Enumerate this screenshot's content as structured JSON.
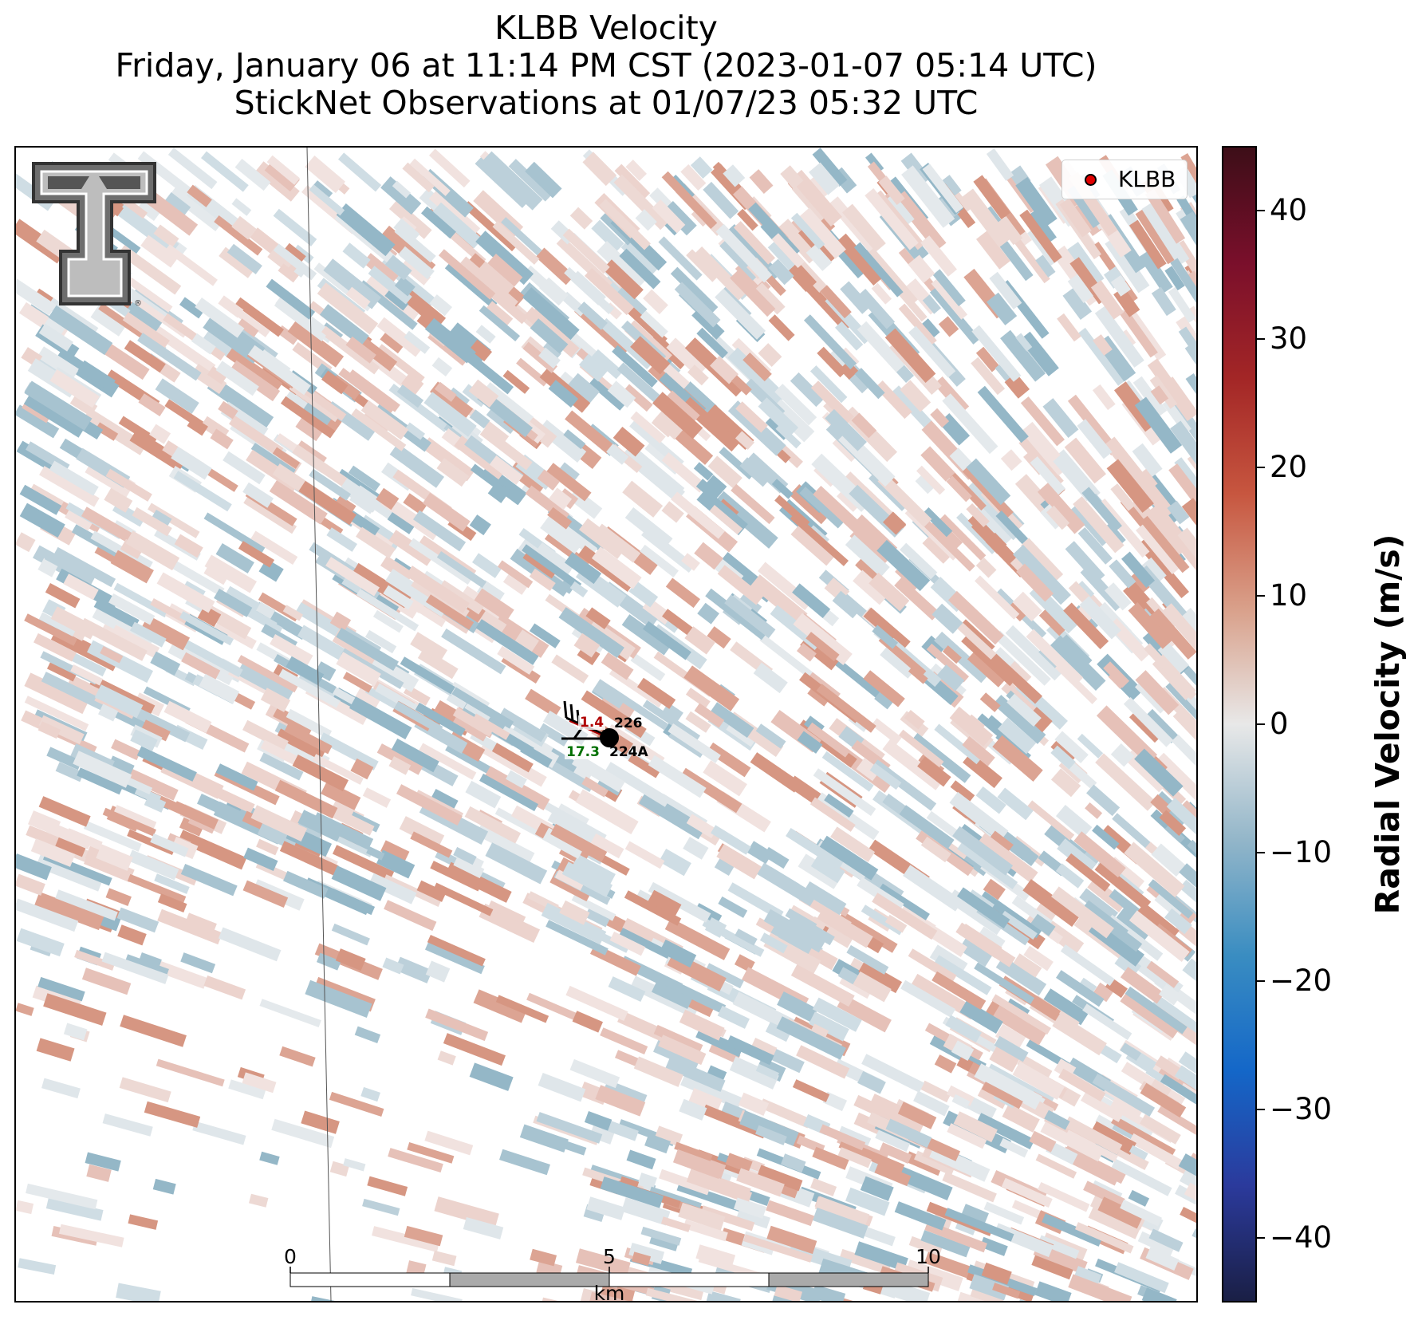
{
  "title": {
    "line1": "KLBB Velocity",
    "line2": "Friday, January 06 at 11:14 PM CST (2023-01-07 05:14 UTC)",
    "line3": "StickNet Observations at 01/07/23 05:32 UTC"
  },
  "legend": {
    "marker_color": "#e00000",
    "label": "KLBB"
  },
  "colorbar": {
    "label": "Radial Velocity (m/s)",
    "range": [
      -45,
      45
    ],
    "ticks": [
      40,
      30,
      20,
      10,
      0,
      -10,
      -20,
      -30,
      -40
    ],
    "tick_labels": [
      "40",
      "30",
      "20",
      "10",
      "0",
      "−10",
      "−20",
      "−30",
      "−40"
    ],
    "colors": [
      "#1a1f45",
      "#2b3a9c",
      "#1467c8",
      "#3a8dc1",
      "#93b6c9",
      "#e8e8e8",
      "#d9a08a",
      "#c7563f",
      "#a32626",
      "#7a0f2b",
      "#3d0e18"
    ]
  },
  "stations": [
    {
      "id": "226",
      "value": "1.4",
      "value_color": "#b00000"
    },
    {
      "id": "224A",
      "value": "17.3",
      "value_color": "#007000"
    }
  ],
  "scale_bar": {
    "labels": [
      "0",
      "5",
      "10"
    ],
    "unit": "km"
  },
  "logo": {
    "name": "texas-tech-double-t-logo"
  }
}
